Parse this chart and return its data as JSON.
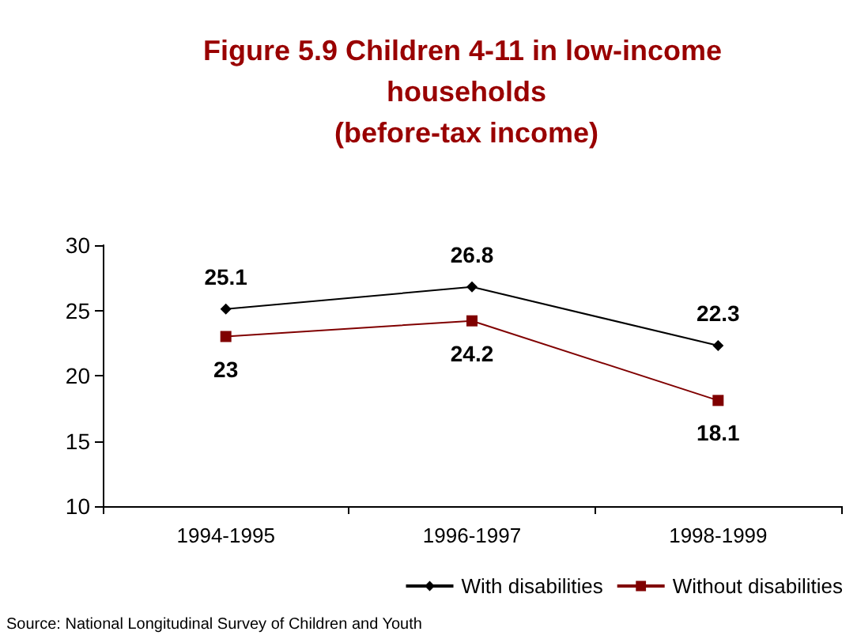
{
  "chart_data": {
    "type": "line",
    "title": "Figure 5.9 Children 4-11 in low-income households\n(before-tax income)",
    "categories": [
      "1994-1995",
      "1996-1997",
      "1998-1999"
    ],
    "series": [
      {
        "name": "With disabilities",
        "color": "#000000",
        "values": [
          25.1,
          26.8,
          22.3
        ],
        "marker": "diamond"
      },
      {
        "name": "Without disabilities",
        "color": "#800000",
        "values": [
          23,
          24.2,
          18.1
        ],
        "marker": "square"
      }
    ],
    "ylim": [
      10,
      30
    ],
    "yticks": [
      10,
      15,
      20,
      25,
      30
    ],
    "grid": false,
    "legend": "bottom right",
    "data_labels": true,
    "line_style": "solid",
    "annotations": [
      "Source: National Longitudinal Survey of Children and Youth"
    ]
  }
}
